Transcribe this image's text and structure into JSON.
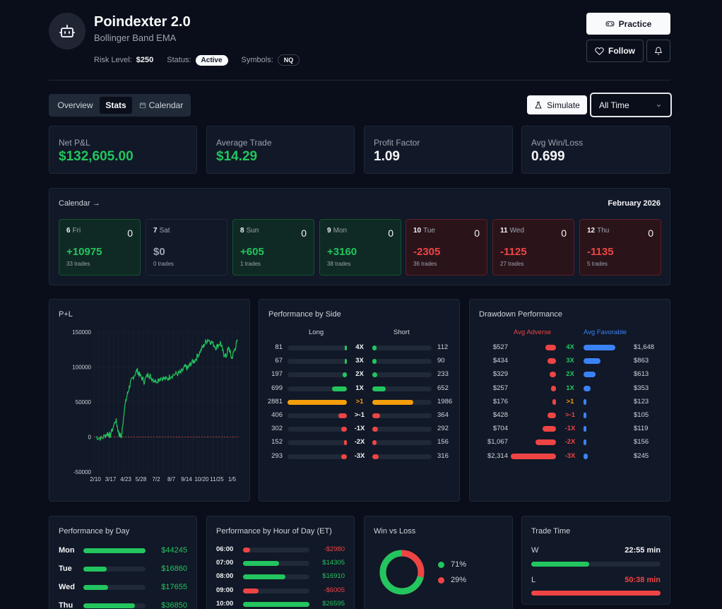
{
  "header": {
    "title": "Poindexter 2.0",
    "subtitle": "Bollinger Band EMA",
    "risk_label": "Risk Level:",
    "risk_value": "$250",
    "status_label": "Status:",
    "status_value": "Active",
    "symbols_label": "Symbols:",
    "symbols_value": "NQ",
    "practice_label": "Practice",
    "follow_label": "Follow"
  },
  "tabs": [
    {
      "label": "Overview",
      "active": false
    },
    {
      "label": "Stats",
      "active": true
    },
    {
      "label": "Calendar",
      "active": false
    }
  ],
  "toolbar": {
    "simulate_label": "Simulate",
    "range_value": "All Time"
  },
  "stats": [
    {
      "label": "Net P&L",
      "value": "$132,605.00",
      "color": "#22c55e"
    },
    {
      "label": "Average Trade",
      "value": "$14.29",
      "color": "#22c55e"
    },
    {
      "label": "Profit Factor",
      "value": "1.09",
      "color": "#f3f4f6"
    },
    {
      "label": "Avg Win/Loss",
      "value": "0.699",
      "color": "#f3f4f6"
    }
  ],
  "calendar": {
    "link": "Calendar →",
    "month": "February 2026",
    "days": [
      {
        "day": "6",
        "dow": "Fri",
        "count": "0",
        "pnl": "+10975",
        "trades": "33 trades",
        "kind": "pos"
      },
      {
        "day": "7",
        "dow": "Sat",
        "count": "",
        "pnl": "$0",
        "trades": "0 trades",
        "kind": "zero"
      },
      {
        "day": "8",
        "dow": "Sun",
        "count": "0",
        "pnl": "+605",
        "trades": "1 trades",
        "kind": "pos"
      },
      {
        "day": "9",
        "dow": "Mon",
        "count": "0",
        "pnl": "+3160",
        "trades": "38 trades",
        "kind": "pos"
      },
      {
        "day": "10",
        "dow": "Tue",
        "count": "0",
        "pnl": "-2305",
        "trades": "36 trades",
        "kind": "neg"
      },
      {
        "day": "11",
        "dow": "Wed",
        "count": "0",
        "pnl": "-1125",
        "trades": "27 trades",
        "kind": "neg"
      },
      {
        "day": "12",
        "dow": "Thu",
        "count": "0",
        "pnl": "-1135",
        "trades": "5 trades",
        "kind": "neg"
      }
    ]
  },
  "pnl_chart": {
    "title": "P+L",
    "y_ticks": [
      "150000",
      "100000",
      "50000",
      "0",
      "-50000"
    ],
    "x_ticks": [
      "2/10",
      "3/17",
      "4/23",
      "5/28",
      "7/2",
      "8/7",
      "9/14",
      "10/20",
      "11/25",
      "1/5"
    ]
  },
  "side": {
    "title": "Performance by Side",
    "long_label": "Long",
    "short_label": "Short",
    "rows": [
      {
        "label": "4X",
        "long": "81",
        "short": "112",
        "lf": 0.03,
        "sf": 0.04,
        "kind": "pos"
      },
      {
        "label": "3X",
        "long": "67",
        "short": "90",
        "lf": 0.02,
        "sf": 0.03,
        "kind": "pos"
      },
      {
        "label": "2X",
        "long": "197",
        "short": "233",
        "lf": 0.07,
        "sf": 0.08,
        "kind": "pos"
      },
      {
        "label": "1X",
        "long": "699",
        "short": "652",
        "lf": 0.25,
        "sf": 0.23,
        "kind": "pos"
      },
      {
        "label": ">1",
        "long": "2881",
        "short": "1986",
        "lf": 1.0,
        "sf": 0.69,
        "kind": "mid"
      },
      {
        "label": ">-1",
        "long": "406",
        "short": "364",
        "lf": 0.14,
        "sf": 0.13,
        "kind": "neg"
      },
      {
        "label": "-1X",
        "long": "302",
        "short": "292",
        "lf": 0.1,
        "sf": 0.1,
        "kind": "neg"
      },
      {
        "label": "-2X",
        "long": "152",
        "short": "156",
        "lf": 0.05,
        "sf": 0.05,
        "kind": "neg"
      },
      {
        "label": "-3X",
        "long": "293",
        "short": "316",
        "lf": 0.1,
        "sf": 0.11,
        "kind": "neg"
      }
    ]
  },
  "drawdown": {
    "title": "Drawdown Performance",
    "adverse_label": "Avg Adverse",
    "favorable_label": "Avg Favorable",
    "rows": [
      {
        "label": "4X",
        "adv": "$527",
        "fav": "$1,648",
        "af": 0.23,
        "ff": 0.71,
        "kind": "pos"
      },
      {
        "label": "3X",
        "adv": "$434",
        "fav": "$863",
        "af": 0.19,
        "ff": 0.37,
        "kind": "pos"
      },
      {
        "label": "2X",
        "adv": "$329",
        "fav": "$613",
        "af": 0.14,
        "ff": 0.26,
        "kind": "pos"
      },
      {
        "label": "1X",
        "adv": "$257",
        "fav": "$353",
        "af": 0.11,
        "ff": 0.15,
        "kind": "pos"
      },
      {
        "label": ">1",
        "adv": "$176",
        "fav": "$123",
        "af": 0.08,
        "ff": 0.05,
        "kind": "mid"
      },
      {
        "label": ">-1",
        "adv": "$428",
        "fav": "$105",
        "af": 0.18,
        "ff": 0.05,
        "kind": "neg"
      },
      {
        "label": "-1X",
        "adv": "$704",
        "fav": "$119",
        "af": 0.3,
        "ff": 0.05,
        "kind": "neg"
      },
      {
        "label": "-2X",
        "adv": "$1,067",
        "fav": "$156",
        "af": 0.46,
        "ff": 0.07,
        "kind": "neg"
      },
      {
        "label": "-3X",
        "adv": "$2,314",
        "fav": "$245",
        "af": 1.0,
        "ff": 0.1,
        "kind": "neg"
      }
    ]
  },
  "by_day": {
    "title": "Performance by Day",
    "rows": [
      {
        "label": "Mon",
        "value": "$44245",
        "frac": 1.0
      },
      {
        "label": "Tue",
        "value": "$16860",
        "frac": 0.38
      },
      {
        "label": "Wed",
        "value": "$17655",
        "frac": 0.4
      },
      {
        "label": "Thu",
        "value": "$36850",
        "frac": 0.83
      }
    ]
  },
  "by_hour": {
    "title": "Performance by Hour of Day (ET)",
    "rows": [
      {
        "label": "06:00",
        "value": "-$2980",
        "frac": 0.11,
        "kind": "neg"
      },
      {
        "label": "07:00",
        "value": "$14305",
        "frac": 0.54,
        "kind": "pos"
      },
      {
        "label": "08:00",
        "value": "$16910",
        "frac": 0.64,
        "kind": "pos"
      },
      {
        "label": "09:00",
        "value": "-$6005",
        "frac": 0.23,
        "kind": "neg"
      },
      {
        "label": "10:00",
        "value": "$26595",
        "frac": 1.0,
        "kind": "pos"
      }
    ]
  },
  "win_loss": {
    "title": "Win vs Loss",
    "win_pct": "71%",
    "loss_pct": "29%",
    "win_frac": 0.71
  },
  "trade_time": {
    "title": "Trade Time",
    "w_label": "W",
    "w_value": "22:55 min",
    "w_frac": 0.45,
    "l_label": "L",
    "l_value": "50:38 min",
    "l_frac": 1.0
  },
  "colors": {
    "green": "#22c55e",
    "red": "#ef4444",
    "orange": "#f59e0b",
    "blue": "#3b82f6"
  }
}
